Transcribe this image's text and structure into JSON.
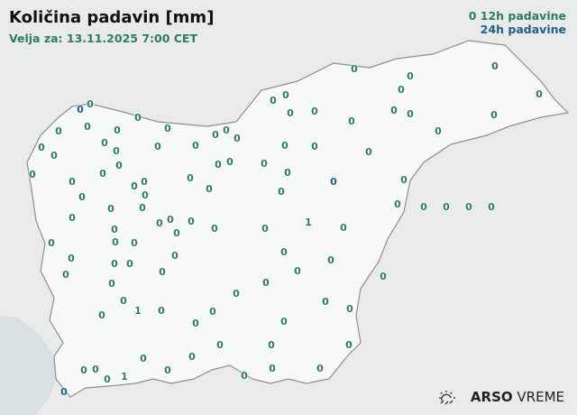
{
  "title": "Količina padavin [mm]",
  "subtitle": "Velja za: 13.11.2025 7:00 CET",
  "legend": {
    "sample": "0",
    "label_12h": "12h padavine",
    "label_24h": "24h padavine"
  },
  "brand": {
    "bold": "ARSO",
    "normal": "VREME",
    "icon": "sun-cloud-icon"
  },
  "colors": {
    "h12": "#2e7d5b",
    "h24": "#1f5f8b",
    "land": "#f7f8f8",
    "outside": "#e9ebeb",
    "sea": "#d9e0e4",
    "border": "#8a8f96"
  },
  "stations": {
    "values": [
      "0",
      "0",
      "0",
      "1",
      "1",
      "1",
      "0",
      "0",
      "0",
      "0",
      "0",
      "0",
      "0",
      "0",
      "0",
      "0",
      "0",
      "0",
      "0",
      "0",
      "0",
      "0",
      "0",
      "0",
      "0",
      "0",
      "0",
      "0",
      "0",
      "0",
      "0",
      "0",
      "0",
      "0",
      "0",
      "0",
      "0",
      "0",
      "0",
      "0",
      "0",
      "0",
      "0",
      "0",
      "0",
      "0",
      "0",
      "0",
      "0",
      "0",
      "0",
      "0",
      "0",
      "0",
      "0",
      "0",
      "0",
      "0",
      "0",
      "0",
      "0",
      "0",
      "0",
      "0",
      "0",
      "0",
      "0",
      "0",
      "0",
      "0",
      "0",
      "0",
      "0",
      "0",
      "0",
      "0",
      "0",
      "0",
      "0",
      "0",
      "0",
      "0",
      "0",
      "0",
      "0",
      "0",
      "0",
      "0",
      "0",
      "0",
      "0",
      "0",
      "0",
      "0",
      "0",
      "0",
      "0",
      "0",
      "0",
      "0",
      "0",
      "0",
      "0",
      "0",
      "0",
      "0"
    ],
    "types": [
      "24h",
      "24h",
      "24h",
      "12h",
      "12h",
      "12h"
    ]
  }
}
